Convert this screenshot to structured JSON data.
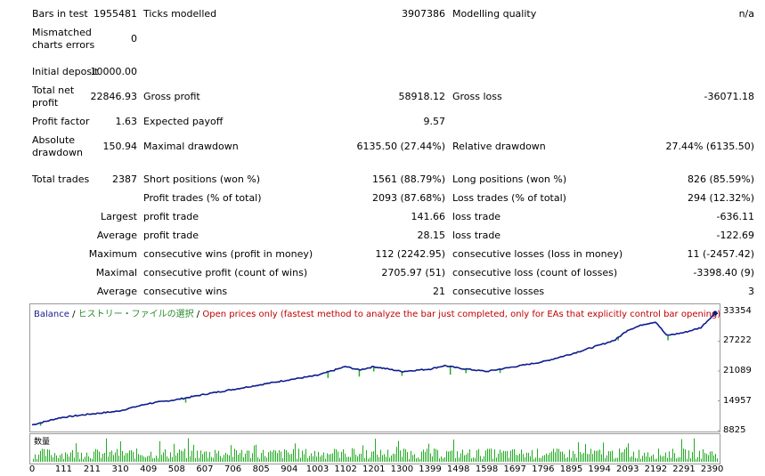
{
  "stats": {
    "bars_label": "Bars in test",
    "bars_value": "1955481",
    "ticks_label": "Ticks modelled",
    "ticks_value": "3907386",
    "quality_label": "Modelling quality",
    "quality_value": "n/a",
    "mismatch_label1": "Mismatched",
    "mismatch_label2": "charts errors",
    "mismatch_value": "0",
    "deposit_label": "Initial deposit",
    "deposit_value": "10000.00",
    "netprofit_label1": "Total net",
    "netprofit_label2": "profit",
    "netprofit_value": "22846.93",
    "grossprofit_label": "Gross profit",
    "grossprofit_value": "58918.12",
    "grossloss_label": "Gross loss",
    "grossloss_value": "-36071.18",
    "pf_label": "Profit factor",
    "pf_value": "1.63",
    "payoff_label": "Expected payoff",
    "payoff_value": "9.57",
    "absdd_label1": "Absolute",
    "absdd_label2": "drawdown",
    "absdd_value": "150.94",
    "maxdd_label": "Maximal drawdown",
    "maxdd_value": "6135.50 (27.44%)",
    "reldd_label": "Relative drawdown",
    "reldd_value": "27.44% (6135.50)",
    "trades_label": "Total trades",
    "trades_value": "2387",
    "short_label": "Short positions (won %)",
    "short_value": "1561 (88.79%)",
    "long_label": "Long positions (won %)",
    "long_value": "826 (85.59%)",
    "pt_label": "Profit trades (% of total)",
    "pt_value": "2093 (87.68%)",
    "lt_label": "Loss trades (% of total)",
    "lt_value": "294 (12.32%)",
    "largest_label": "Largest",
    "lp_label": "profit trade",
    "lp_value": "141.66",
    "ll_label": "loss trade",
    "ll_value": "-636.11",
    "average_label": "Average",
    "ap_label": "profit trade",
    "ap_value": "28.15",
    "al_label": "loss trade",
    "al_value": "-122.69",
    "maximum_label": "Maximum",
    "mcw_label": "consecutive wins (profit in money)",
    "mcw_value": "112 (2242.95)",
    "mcl_label": "consecutive losses (loss in money)",
    "mcl_value": "11 (-2457.42)",
    "maximal_label": "Maximal",
    "mcp_label": "consecutive profit (count of wins)",
    "mcp_value": "2705.97 (51)",
    "mcls_label": "consecutive loss (count of losses)",
    "mcls_value": "-3398.40 (9)",
    "average2_label": "Average",
    "acw_label": "consecutive wins",
    "acw_value": "21",
    "acl_label": "consecutive losses",
    "acl_value": "3"
  },
  "chart": {
    "title_balance": "Balance",
    "title_sep1": " / ",
    "title_history": "ヒストリー・ファイルの選択",
    "title_sep2": " / ",
    "title_mode": "Open prices only (fastest method to analyze the bar just completed, only for EAs that explicitly control bar opening)",
    "volume_label": "数量",
    "colors": {
      "balance": "#0c1c8c",
      "equity": "#22aa22",
      "title_mode": "#c00000"
    }
  },
  "chart_data": {
    "type": "line",
    "y_ticks": [
      "33354",
      "27222",
      "21089",
      "14957",
      "8825"
    ],
    "x_ticks": [
      "0",
      "111",
      "211",
      "310",
      "409",
      "508",
      "607",
      "706",
      "805",
      "904",
      "1003",
      "1102",
      "1201",
      "1300",
      "1399",
      "1498",
      "1598",
      "1697",
      "1796",
      "1895",
      "1994",
      "2093",
      "2192",
      "2291",
      "2390"
    ],
    "ylim": [
      8825,
      33354
    ],
    "xlim": [
      0,
      2410
    ],
    "series": [
      {
        "name": "Balance",
        "points": [
          [
            0,
            10000
          ],
          [
            100,
            11500
          ],
          [
            200,
            12200
          ],
          [
            300,
            12800
          ],
          [
            409,
            14400
          ],
          [
            508,
            15200
          ],
          [
            607,
            16300
          ],
          [
            706,
            17300
          ],
          [
            805,
            18300
          ],
          [
            904,
            19300
          ],
          [
            1003,
            20200
          ],
          [
            1102,
            22000
          ],
          [
            1150,
            21300
          ],
          [
            1201,
            22000
          ],
          [
            1300,
            21000
          ],
          [
            1399,
            21500
          ],
          [
            1450,
            22200
          ],
          [
            1498,
            21700
          ],
          [
            1598,
            21000
          ],
          [
            1697,
            22000
          ],
          [
            1796,
            23000
          ],
          [
            1895,
            24600
          ],
          [
            1994,
            26400
          ],
          [
            2050,
            27500
          ],
          [
            2093,
            29500
          ],
          [
            2150,
            30700
          ],
          [
            2192,
            31200
          ],
          [
            2230,
            28400
          ],
          [
            2291,
            29000
          ],
          [
            2350,
            30000
          ],
          [
            2390,
            32400
          ],
          [
            2410,
            33000
          ]
        ]
      }
    ]
  }
}
